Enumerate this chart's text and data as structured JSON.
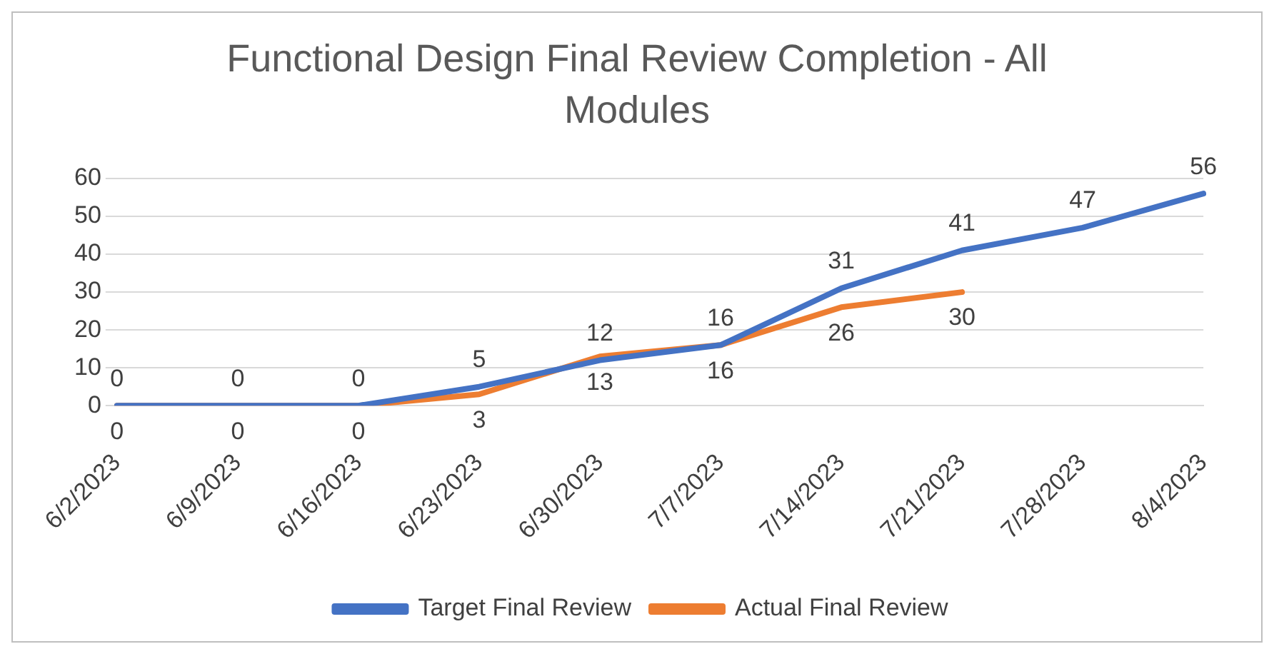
{
  "chart_data": {
    "type": "line",
    "title": "Functional Design Final Review Completion - All Modules",
    "categories": [
      "6/2/2023",
      "6/9/2023",
      "6/16/2023",
      "6/23/2023",
      "6/30/2023",
      "7/7/2023",
      "7/14/2023",
      "7/21/2023",
      "7/28/2023",
      "8/4/2023"
    ],
    "series": [
      {
        "name": "Target Final Review",
        "color": "#4472c4",
        "values": [
          0,
          0,
          0,
          5,
          12,
          16,
          31,
          41,
          47,
          56
        ]
      },
      {
        "name": "Actual Final Review",
        "color": "#ed7d31",
        "values": [
          0,
          0,
          0,
          3,
          13,
          16,
          26,
          30,
          null,
          null
        ]
      }
    ],
    "ylim": [
      0,
      60
    ],
    "yticks": [
      0,
      10,
      20,
      30,
      40,
      50,
      60
    ],
    "grid": "y",
    "legend": "bottom",
    "data_labels": true,
    "marker": "none",
    "line_style": "solid"
  }
}
